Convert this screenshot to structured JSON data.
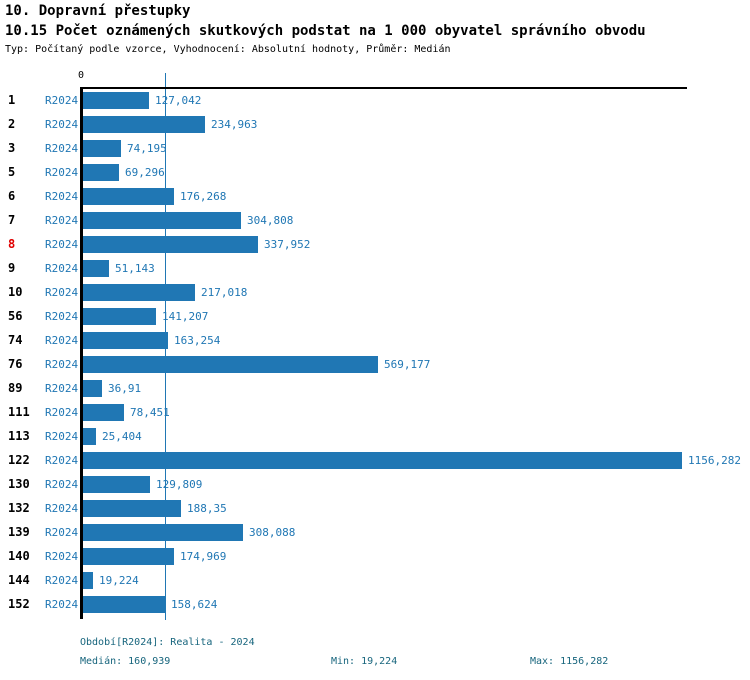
{
  "header": {
    "title": "10. Dopravní přestupky",
    "subtitle": "10.15 Počet oznámených skutkových podstat na 1 000 obyvatel správního obvodu",
    "meta": "Typ: Počítaný podle vzorce, Vyhodnocení: Absolutní hodnoty, Průměr: Medián"
  },
  "chart_data": {
    "type": "bar",
    "orientation": "horizontal",
    "series_name": "R2024",
    "axis_zero_label": "0",
    "value_axis_min": 0,
    "median_value": 160.939,
    "highlighted_row": "8",
    "rows": [
      {
        "label": "1",
        "period": "R2024",
        "value_label": "127,042",
        "value": 127.042,
        "highlighted": false
      },
      {
        "label": "2",
        "period": "R2024",
        "value_label": "234,963",
        "value": 234.963,
        "highlighted": false
      },
      {
        "label": "3",
        "period": "R2024",
        "value_label": "74,195",
        "value": 74.195,
        "highlighted": false
      },
      {
        "label": "5",
        "period": "R2024",
        "value_label": "69,296",
        "value": 69.296,
        "highlighted": false
      },
      {
        "label": "6",
        "period": "R2024",
        "value_label": "176,268",
        "value": 176.268,
        "highlighted": false
      },
      {
        "label": "7",
        "period": "R2024",
        "value_label": "304,808",
        "value": 304.808,
        "highlighted": false
      },
      {
        "label": "8",
        "period": "R2024",
        "value_label": "337,952",
        "value": 337.952,
        "highlighted": true
      },
      {
        "label": "9",
        "period": "R2024",
        "value_label": "51,143",
        "value": 51.143,
        "highlighted": false
      },
      {
        "label": "10",
        "period": "R2024",
        "value_label": "217,018",
        "value": 217.018,
        "highlighted": false
      },
      {
        "label": "56",
        "period": "R2024",
        "value_label": "141,207",
        "value": 141.207,
        "highlighted": false
      },
      {
        "label": "74",
        "period": "R2024",
        "value_label": "163,254",
        "value": 163.254,
        "highlighted": false
      },
      {
        "label": "76",
        "period": "R2024",
        "value_label": "569,177",
        "value": 569.177,
        "highlighted": false
      },
      {
        "label": "89",
        "period": "R2024",
        "value_label": "36,91",
        "value": 36.91,
        "highlighted": false
      },
      {
        "label": "111",
        "period": "R2024",
        "value_label": "78,451",
        "value": 78.451,
        "highlighted": false
      },
      {
        "label": "113",
        "period": "R2024",
        "value_label": "25,404",
        "value": 25.404,
        "highlighted": false
      },
      {
        "label": "122",
        "period": "R2024",
        "value_label": "1156,282",
        "value": 1156.282,
        "highlighted": false
      },
      {
        "label": "130",
        "period": "R2024",
        "value_label": "129,809",
        "value": 129.809,
        "highlighted": false
      },
      {
        "label": "132",
        "period": "R2024",
        "value_label": "188,35",
        "value": 188.35,
        "highlighted": false
      },
      {
        "label": "139",
        "period": "R2024",
        "value_label": "308,088",
        "value": 308.088,
        "highlighted": false
      },
      {
        "label": "140",
        "period": "R2024",
        "value_label": "174,969",
        "value": 174.969,
        "highlighted": false
      },
      {
        "label": "144",
        "period": "R2024",
        "value_label": "19,224",
        "value": 19.224,
        "highlighted": false
      },
      {
        "label": "152",
        "period": "R2024",
        "value_label": "158,624",
        "value": 158.624,
        "highlighted": false
      }
    ]
  },
  "footer": {
    "period_line": "Období[R2024]: Realita - 2024",
    "median_line": "Medián: 160,939",
    "min_line": "Min: 19,224",
    "max_line": "Max: 1156,282"
  },
  "colors": {
    "bar": "#2077B4",
    "value_label": "#2077B4",
    "period_label": "#2077B4",
    "median_line": "#2077B4",
    "row_label": "#000000",
    "row_label_highlight": "#E00000",
    "footer_text": "#17657D",
    "axis": "#000000",
    "title_text": "#000000",
    "background": "#FFFFFF"
  }
}
